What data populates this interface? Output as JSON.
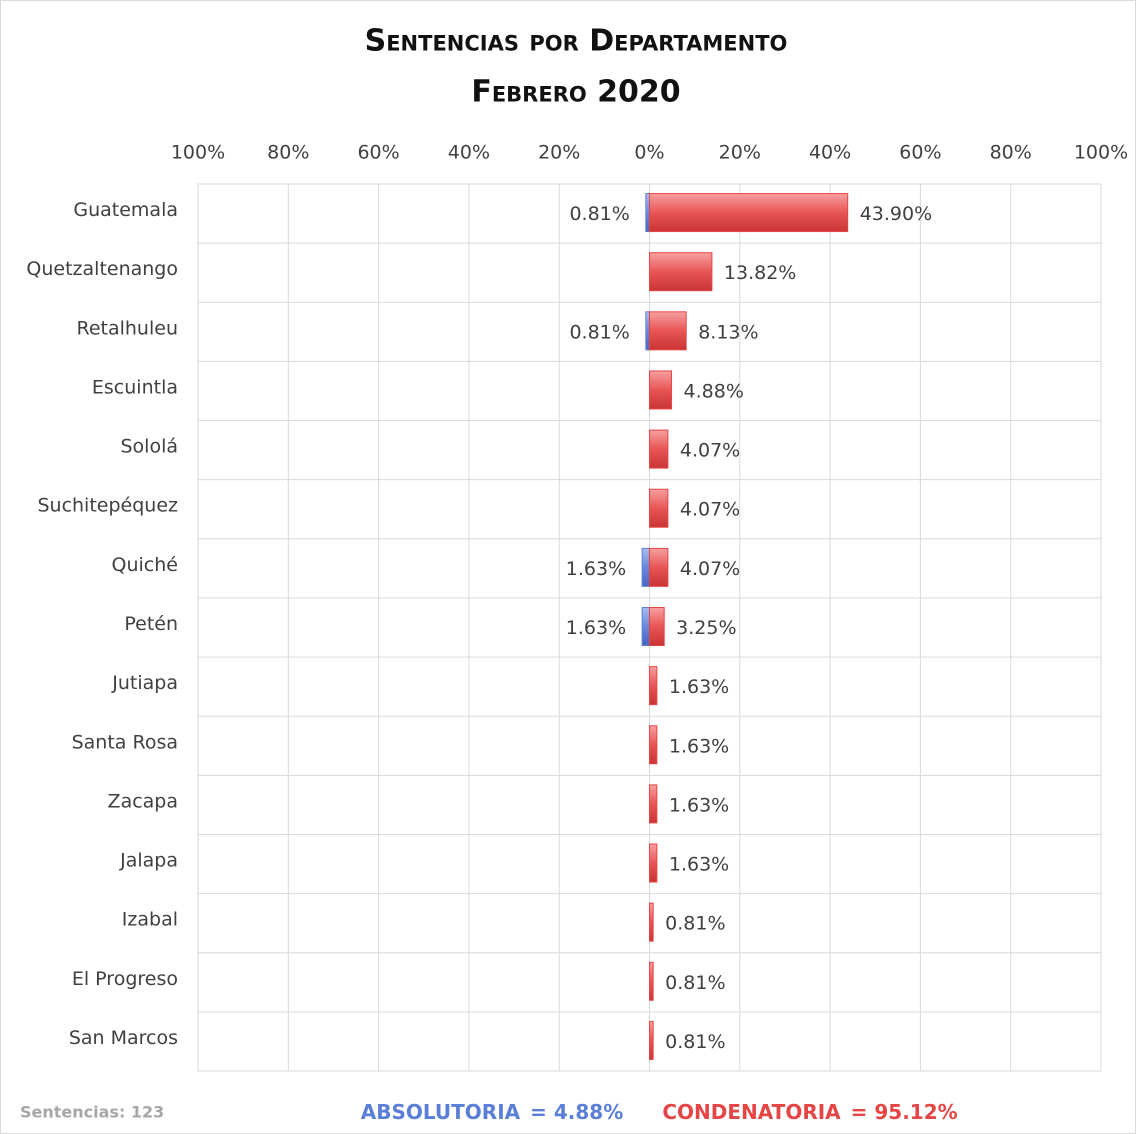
{
  "chart_data": {
    "type": "butterfly-bar",
    "title": "Sentencias por Departamento",
    "subtitle": "Febrero 2020",
    "categories": [
      "Guatemala",
      "Quetzaltenango",
      "Retalhuleu",
      "Escuintla",
      "Sololá",
      "Suchitepéquez",
      "Quiché",
      "Petén",
      "Jutiapa",
      "Santa Rosa",
      "Zacapa",
      "Jalapa",
      "Izabal",
      "El Progreso",
      "San Marcos"
    ],
    "series": [
      {
        "name": "ABSOLUTORIA",
        "color": "#5b7fd6",
        "total_label": "= 4.88%",
        "values": [
          -0.81,
          null,
          -0.81,
          null,
          null,
          null,
          -1.63,
          -1.63,
          null,
          null,
          null,
          null,
          null,
          null,
          null
        ],
        "value_labels": [
          "0.81%",
          null,
          "0.81%",
          null,
          null,
          null,
          "1.63%",
          "1.63%",
          null,
          null,
          null,
          null,
          null,
          null,
          null
        ]
      },
      {
        "name": "CONDENATORIA",
        "color": "#e64545",
        "total_label": "= 95.12%",
        "values": [
          43.9,
          13.82,
          8.13,
          4.88,
          4.07,
          4.07,
          4.07,
          3.25,
          1.63,
          1.63,
          1.63,
          1.63,
          0.81,
          0.81,
          0.81
        ],
        "value_labels": [
          "43.90%",
          "13.82%",
          "8.13%",
          "4.88%",
          "4.07%",
          "4.07%",
          "4.07%",
          "3.25%",
          "1.63%",
          "1.63%",
          "1.63%",
          "1.63%",
          "0.81%",
          "0.81%",
          "0.81%"
        ]
      }
    ],
    "xlim": [
      -100,
      100
    ],
    "xticks": [
      {
        "value": -100,
        "label": "100%"
      },
      {
        "value": -80,
        "label": "80%"
      },
      {
        "value": -60,
        "label": "60%"
      },
      {
        "value": -40,
        "label": "40%"
      },
      {
        "value": -20,
        "label": "20%"
      },
      {
        "value": 0,
        "label": "0%"
      },
      {
        "value": 20,
        "label": "20%"
      },
      {
        "value": 40,
        "label": "40%"
      },
      {
        "value": 60,
        "label": "60%"
      },
      {
        "value": 80,
        "label": "80%"
      },
      {
        "value": 100,
        "label": "100%"
      }
    ],
    "grid": true,
    "note": "Sentencias: 123"
  }
}
